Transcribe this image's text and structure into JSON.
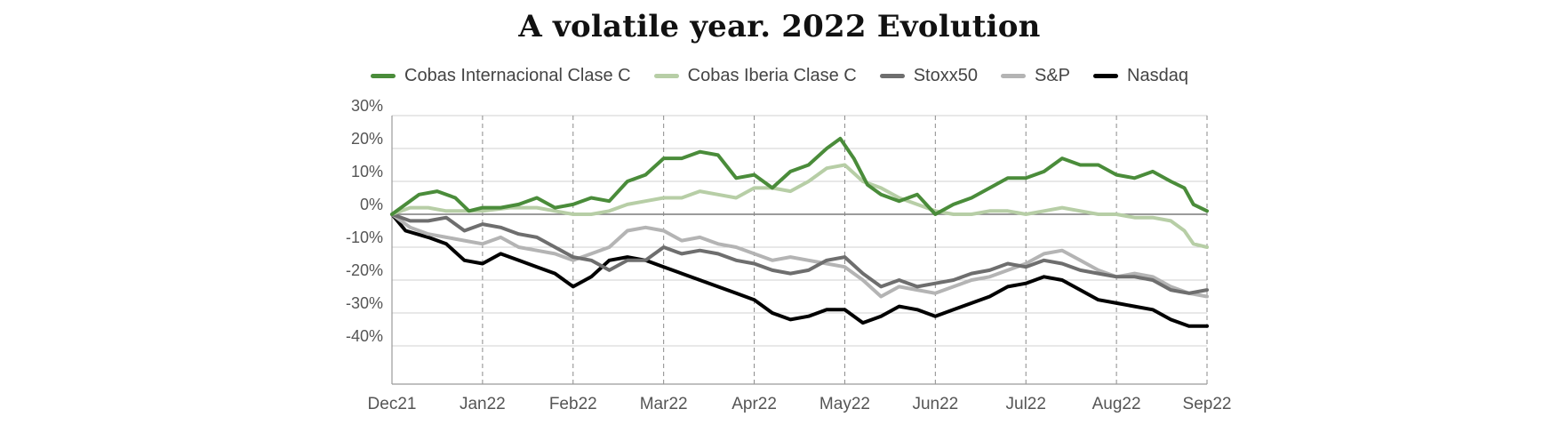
{
  "chart_data": {
    "type": "line",
    "title": "A volatile year. 2022 Evolution",
    "xlabel": "",
    "ylabel": "",
    "x_ticks": [
      "Dec21",
      "Jan22",
      "Feb22",
      "Mar22",
      "Apr22",
      "May22",
      "Jun22",
      "Jul22",
      "Aug22",
      "Sep22"
    ],
    "y_ticks": [
      "30%",
      "20%",
      "10%",
      "0%",
      "-10%",
      "-20%",
      "-30%",
      "-40%"
    ],
    "ylim": [
      -40,
      30
    ],
    "grid": true,
    "legend_position": "top",
    "series": [
      {
        "name": "Cobas Internacional Clase C",
        "color": "#4a8c3a",
        "points": [
          [
            0,
            0
          ],
          [
            0.15,
            3
          ],
          [
            0.3,
            6
          ],
          [
            0.5,
            7
          ],
          [
            0.7,
            5
          ],
          [
            0.85,
            1
          ],
          [
            1,
            2
          ],
          [
            1.2,
            2
          ],
          [
            1.4,
            3
          ],
          [
            1.6,
            5
          ],
          [
            1.8,
            2
          ],
          [
            2,
            3
          ],
          [
            2.2,
            5
          ],
          [
            2.4,
            4
          ],
          [
            2.6,
            10
          ],
          [
            2.8,
            12
          ],
          [
            3,
            17
          ],
          [
            3.2,
            17
          ],
          [
            3.4,
            19
          ],
          [
            3.6,
            18
          ],
          [
            3.8,
            11
          ],
          [
            4,
            12
          ],
          [
            4.2,
            8
          ],
          [
            4.4,
            13
          ],
          [
            4.6,
            15
          ],
          [
            4.8,
            20
          ],
          [
            4.95,
            23
          ],
          [
            5.1,
            17
          ],
          [
            5.25,
            9
          ],
          [
            5.4,
            6
          ],
          [
            5.6,
            4
          ],
          [
            5.8,
            6
          ],
          [
            6,
            0
          ],
          [
            6.2,
            3
          ],
          [
            6.4,
            5
          ],
          [
            6.6,
            8
          ],
          [
            6.8,
            11
          ],
          [
            7,
            11
          ],
          [
            7.2,
            13
          ],
          [
            7.4,
            17
          ],
          [
            7.6,
            15
          ],
          [
            7.8,
            15
          ],
          [
            8,
            12
          ],
          [
            8.2,
            11
          ],
          [
            8.4,
            13
          ],
          [
            8.6,
            10
          ],
          [
            8.75,
            8
          ],
          [
            8.85,
            3
          ],
          [
            9,
            1
          ]
        ]
      },
      {
        "name": "Cobas Iberia Clase C",
        "color": "#b7cea6",
        "points": [
          [
            0,
            0
          ],
          [
            0.2,
            2
          ],
          [
            0.4,
            2
          ],
          [
            0.6,
            1
          ],
          [
            0.8,
            1
          ],
          [
            1,
            1
          ],
          [
            1.3,
            2
          ],
          [
            1.6,
            2
          ],
          [
            1.8,
            1
          ],
          [
            2,
            0
          ],
          [
            2.2,
            0
          ],
          [
            2.4,
            1
          ],
          [
            2.6,
            3
          ],
          [
            2.8,
            4
          ],
          [
            3,
            5
          ],
          [
            3.2,
            5
          ],
          [
            3.4,
            7
          ],
          [
            3.6,
            6
          ],
          [
            3.8,
            5
          ],
          [
            4,
            8
          ],
          [
            4.2,
            8
          ],
          [
            4.4,
            7
          ],
          [
            4.6,
            10
          ],
          [
            4.8,
            14
          ],
          [
            5,
            15
          ],
          [
            5.2,
            10
          ],
          [
            5.4,
            8
          ],
          [
            5.6,
            5
          ],
          [
            5.8,
            3
          ],
          [
            6,
            1
          ],
          [
            6.2,
            0
          ],
          [
            6.4,
            0
          ],
          [
            6.6,
            1
          ],
          [
            6.8,
            1
          ],
          [
            7,
            0
          ],
          [
            7.2,
            1
          ],
          [
            7.4,
            2
          ],
          [
            7.6,
            1
          ],
          [
            7.8,
            0
          ],
          [
            8,
            0
          ],
          [
            8.2,
            -1
          ],
          [
            8.4,
            -1
          ],
          [
            8.6,
            -2
          ],
          [
            8.75,
            -5
          ],
          [
            8.85,
            -9
          ],
          [
            9,
            -10
          ]
        ]
      },
      {
        "name": "Stoxx50",
        "color": "#6e6e6e",
        "points": [
          [
            0,
            0
          ],
          [
            0.2,
            -2
          ],
          [
            0.4,
            -2
          ],
          [
            0.6,
            -1
          ],
          [
            0.8,
            -5
          ],
          [
            1,
            -3
          ],
          [
            1.2,
            -4
          ],
          [
            1.4,
            -6
          ],
          [
            1.6,
            -7
          ],
          [
            1.8,
            -10
          ],
          [
            2,
            -13
          ],
          [
            2.2,
            -14
          ],
          [
            2.4,
            -17
          ],
          [
            2.6,
            -14
          ],
          [
            2.8,
            -14
          ],
          [
            3,
            -10
          ],
          [
            3.2,
            -12
          ],
          [
            3.4,
            -11
          ],
          [
            3.6,
            -12
          ],
          [
            3.8,
            -14
          ],
          [
            4,
            -15
          ],
          [
            4.2,
            -17
          ],
          [
            4.4,
            -18
          ],
          [
            4.6,
            -17
          ],
          [
            4.8,
            -14
          ],
          [
            5,
            -13
          ],
          [
            5.2,
            -18
          ],
          [
            5.4,
            -22
          ],
          [
            5.6,
            -20
          ],
          [
            5.8,
            -22
          ],
          [
            6,
            -21
          ],
          [
            6.2,
            -20
          ],
          [
            6.4,
            -18
          ],
          [
            6.6,
            -17
          ],
          [
            6.8,
            -15
          ],
          [
            7,
            -16
          ],
          [
            7.2,
            -14
          ],
          [
            7.4,
            -15
          ],
          [
            7.6,
            -17
          ],
          [
            7.8,
            -18
          ],
          [
            8,
            -19
          ],
          [
            8.2,
            -19
          ],
          [
            8.4,
            -20
          ],
          [
            8.6,
            -23
          ],
          [
            8.8,
            -24
          ],
          [
            9,
            -23
          ]
        ]
      },
      {
        "name": "S&P",
        "color": "#b4b4b4",
        "points": [
          [
            0,
            0
          ],
          [
            0.2,
            -4
          ],
          [
            0.4,
            -6
          ],
          [
            0.6,
            -7
          ],
          [
            0.8,
            -8
          ],
          [
            1,
            -9
          ],
          [
            1.2,
            -7
          ],
          [
            1.4,
            -10
          ],
          [
            1.6,
            -11
          ],
          [
            1.8,
            -12
          ],
          [
            2,
            -14
          ],
          [
            2.2,
            -12
          ],
          [
            2.4,
            -10
          ],
          [
            2.6,
            -5
          ],
          [
            2.8,
            -4
          ],
          [
            3,
            -5
          ],
          [
            3.2,
            -8
          ],
          [
            3.4,
            -7
          ],
          [
            3.6,
            -9
          ],
          [
            3.8,
            -10
          ],
          [
            4,
            -12
          ],
          [
            4.2,
            -14
          ],
          [
            4.4,
            -13
          ],
          [
            4.6,
            -14
          ],
          [
            4.8,
            -15
          ],
          [
            5,
            -16
          ],
          [
            5.2,
            -20
          ],
          [
            5.4,
            -25
          ],
          [
            5.6,
            -22
          ],
          [
            5.8,
            -23
          ],
          [
            6,
            -24
          ],
          [
            6.2,
            -22
          ],
          [
            6.4,
            -20
          ],
          [
            6.6,
            -19
          ],
          [
            6.8,
            -17
          ],
          [
            7,
            -15
          ],
          [
            7.2,
            -12
          ],
          [
            7.4,
            -11
          ],
          [
            7.6,
            -14
          ],
          [
            7.8,
            -17
          ],
          [
            8,
            -19
          ],
          [
            8.2,
            -18
          ],
          [
            8.4,
            -19
          ],
          [
            8.6,
            -22
          ],
          [
            8.8,
            -24
          ],
          [
            9,
            -25
          ]
        ]
      },
      {
        "name": "Nasdaq",
        "color": "#000000",
        "points": [
          [
            0,
            0
          ],
          [
            0.15,
            -5
          ],
          [
            0.4,
            -7
          ],
          [
            0.6,
            -9
          ],
          [
            0.8,
            -14
          ],
          [
            1,
            -15
          ],
          [
            1.2,
            -12
          ],
          [
            1.4,
            -14
          ],
          [
            1.6,
            -16
          ],
          [
            1.8,
            -18
          ],
          [
            2,
            -22
          ],
          [
            2.2,
            -19
          ],
          [
            2.4,
            -14
          ],
          [
            2.6,
            -13
          ],
          [
            2.8,
            -14
          ],
          [
            3,
            -16
          ],
          [
            3.2,
            -18
          ],
          [
            3.4,
            -20
          ],
          [
            3.6,
            -22
          ],
          [
            3.8,
            -24
          ],
          [
            4,
            -26
          ],
          [
            4.2,
            -30
          ],
          [
            4.4,
            -32
          ],
          [
            4.6,
            -31
          ],
          [
            4.8,
            -29
          ],
          [
            5,
            -29
          ],
          [
            5.2,
            -33
          ],
          [
            5.4,
            -31
          ],
          [
            5.6,
            -28
          ],
          [
            5.8,
            -29
          ],
          [
            6,
            -31
          ],
          [
            6.2,
            -29
          ],
          [
            6.4,
            -27
          ],
          [
            6.6,
            -25
          ],
          [
            6.8,
            -22
          ],
          [
            7,
            -21
          ],
          [
            7.2,
            -19
          ],
          [
            7.4,
            -20
          ],
          [
            7.6,
            -23
          ],
          [
            7.8,
            -26
          ],
          [
            8,
            -27
          ],
          [
            8.2,
            -28
          ],
          [
            8.4,
            -29
          ],
          [
            8.6,
            -32
          ],
          [
            8.8,
            -34
          ],
          [
            9,
            -34
          ]
        ]
      }
    ]
  }
}
